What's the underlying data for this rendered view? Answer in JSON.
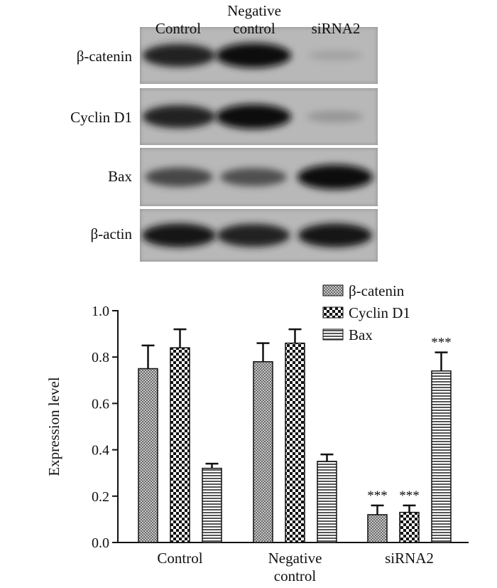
{
  "blot": {
    "lanes": [
      "Control",
      "Negative control",
      "siRNA2"
    ],
    "lane_label_lines": [
      [
        "Control"
      ],
      [
        "Negative",
        "control"
      ],
      [
        "siRNA2"
      ]
    ],
    "rows": [
      {
        "label": "β-catenin",
        "intensity": [
          0.85,
          0.95,
          0.15
        ]
      },
      {
        "label": "Cyclin D1",
        "intensity": [
          0.85,
          0.95,
          0.22
        ]
      },
      {
        "label": "Bax",
        "intensity": [
          0.65,
          0.6,
          0.95
        ]
      },
      {
        "label": "β-actin",
        "intensity": [
          0.9,
          0.85,
          0.9
        ]
      }
    ]
  },
  "chart_data": {
    "type": "bar",
    "categories": [
      "Control",
      "Negative control",
      "siRNA2"
    ],
    "category_label_lines": [
      [
        "Control"
      ],
      [
        "Negative",
        "control"
      ],
      [
        "siRNA2"
      ]
    ],
    "series": [
      {
        "name": "β-catenin",
        "pattern": "dense-checker",
        "values": [
          0.75,
          0.78,
          0.12
        ],
        "errors": [
          0.1,
          0.08,
          0.04
        ],
        "significance": [
          "",
          "",
          "***"
        ]
      },
      {
        "name": "Cyclin D1",
        "pattern": "checkerboard",
        "values": [
          0.84,
          0.86,
          0.13
        ],
        "errors": [
          0.08,
          0.06,
          0.03
        ],
        "significance": [
          "",
          "",
          "***"
        ]
      },
      {
        "name": "Bax",
        "pattern": "horizontal-stripes",
        "values": [
          0.32,
          0.35,
          0.74
        ],
        "errors": [
          0.02,
          0.03,
          0.08
        ],
        "significance": [
          "",
          "",
          "***"
        ]
      }
    ],
    "ylabel": "Expression level",
    "xlabel": "",
    "title": "",
    "ylim": [
      0.0,
      1.0
    ],
    "yticks": [
      "0.0",
      "0.2",
      "0.4",
      "0.6",
      "0.8",
      "1.0"
    ],
    "legend_position": "top-right",
    "grid": false
  }
}
